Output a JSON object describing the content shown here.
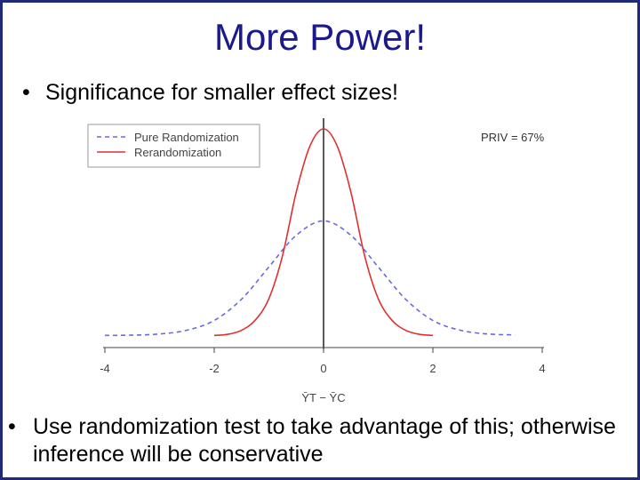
{
  "slide": {
    "title": "More Power!",
    "bullets": [
      "Significance for smaller effect sizes!",
      "Use randomization test to take advantage of this; otherwise inference will be conservative"
    ]
  },
  "chart_data": {
    "type": "line",
    "xlabel": "ȲT − ȲC",
    "xlim": [
      -4,
      4
    ],
    "xticks": [
      "-4",
      "-2",
      "0",
      "2",
      "4"
    ],
    "annotation": "PRIV = 67%",
    "legend_position": "top-left",
    "colors": {
      "pure": "#6a6adf",
      "rerand": "#e03030",
      "axis": "#000000"
    },
    "series": [
      {
        "name": "Pure Randomization",
        "style": "dashed",
        "x": [
          -4,
          -3.5,
          -3,
          -2.5,
          -2,
          -1.5,
          -1,
          -0.5,
          0,
          0.5,
          1,
          1.5,
          2,
          2.5,
          3,
          3.5
        ],
        "y": [
          0.002,
          0.003,
          0.007,
          0.02,
          0.054,
          0.128,
          0.24,
          0.35,
          0.4,
          0.35,
          0.24,
          0.128,
          0.054,
          0.02,
          0.007,
          0.004
        ]
      },
      {
        "name": "Rerandomization",
        "style": "solid",
        "x": [
          -2,
          -1.75,
          -1.5,
          -1.25,
          -1,
          -0.75,
          -0.5,
          -0.25,
          0,
          0.25,
          0.5,
          0.75,
          1,
          1.25,
          1.5,
          1.75,
          2
        ],
        "y": [
          0.002,
          0.006,
          0.02,
          0.055,
          0.13,
          0.28,
          0.5,
          0.66,
          0.72,
          0.66,
          0.5,
          0.28,
          0.13,
          0.055,
          0.02,
          0.006,
          0.002
        ]
      }
    ]
  }
}
